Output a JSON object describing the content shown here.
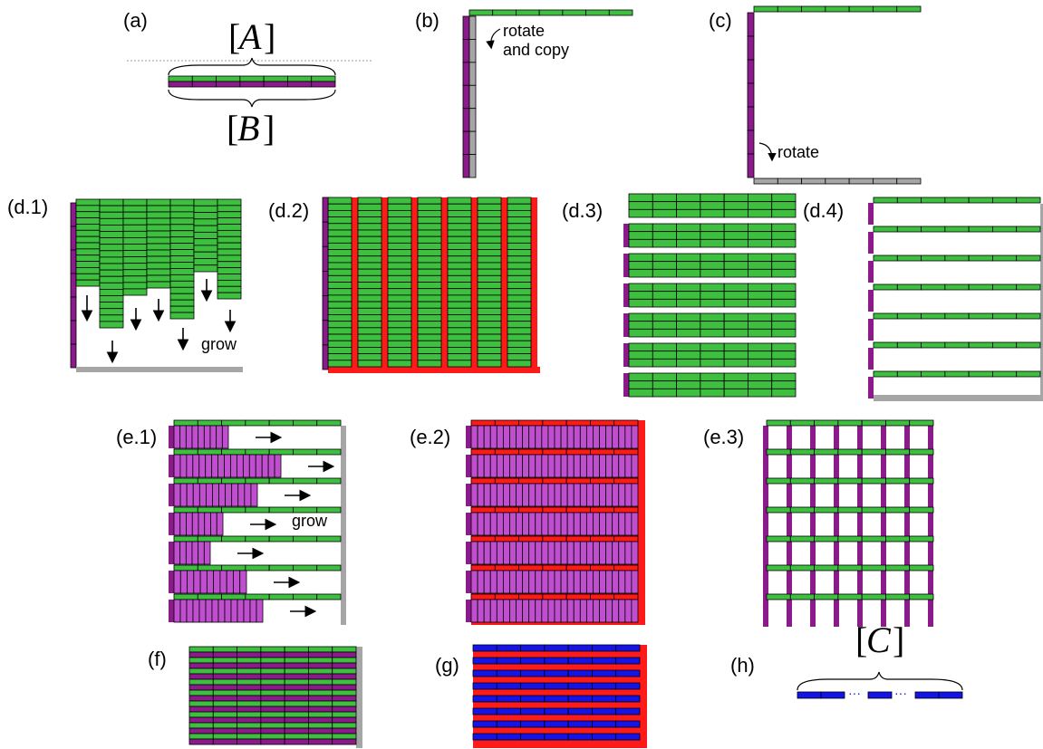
{
  "colors": {
    "green": "#3fbf3f",
    "purple": "#8b1a8b",
    "purple_fill": "#c04fd0",
    "gray": "#a6a6a6",
    "red": "#ff1a1a",
    "blue": "#1414e6",
    "navy": "#0a0a8c",
    "dots": "#1414e6",
    "outline": "#000000"
  },
  "panels": {
    "a": {
      "label": "(a)",
      "top_math": "A",
      "bottom_math": "B"
    },
    "b": {
      "label": "(b)",
      "note_line1": "rotate",
      "note_line2": "and copy"
    },
    "c": {
      "label": "(c)",
      "note": "rotate"
    },
    "d1": {
      "label": "(d.1)",
      "note": "grow"
    },
    "d2": {
      "label": "(d.2)"
    },
    "d3": {
      "label": "(d.3)"
    },
    "d4": {
      "label": "(d.4)"
    },
    "e1": {
      "label": "(e.1)",
      "note": "grow"
    },
    "e2": {
      "label": "(e.2)"
    },
    "e3": {
      "label": "(e.3)"
    },
    "f": {
      "label": "(f)"
    },
    "g": {
      "label": "(g)"
    },
    "h": {
      "label": "(h)",
      "math": "C",
      "dots": "···"
    }
  },
  "brackets": {
    "open": "[",
    "close": "]"
  }
}
